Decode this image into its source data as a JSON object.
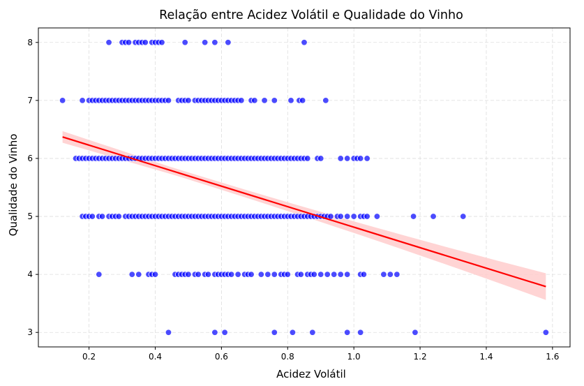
{
  "chart_data": {
    "type": "scatter",
    "title": "Relação entre Acidez Volátil e Qualidade do Vinho",
    "xlabel": "Acidez Volátil",
    "ylabel": "Qualidade do Vinho",
    "xlim": [
      0.047,
      1.653
    ],
    "ylim": [
      2.75,
      8.25
    ],
    "xticks": [
      0.2,
      0.4,
      0.6,
      0.8,
      1.0,
      1.2,
      1.4,
      1.6
    ],
    "xtick_labels": [
      "0.2",
      "0.4",
      "0.6",
      "0.8",
      "1.0",
      "1.2",
      "1.4",
      "1.6"
    ],
    "yticks": [
      3,
      4,
      5,
      6,
      7,
      8
    ],
    "ytick_labels": [
      "3",
      "4",
      "5",
      "6",
      "7",
      "8"
    ],
    "grid": true,
    "colors": {
      "points": "#0000ff",
      "points_edge": "#ffffff",
      "regression_line": "#ff0000",
      "confidence_band": "#ffcccc",
      "grid": "#dddddd"
    },
    "series": [
      {
        "points": [
          [
            0.44,
            3
          ],
          [
            0.58,
            3
          ],
          [
            0.61,
            3
          ],
          [
            0.76,
            3
          ],
          [
            0.815,
            3
          ],
          [
            0.875,
            3
          ],
          [
            0.98,
            3
          ],
          [
            1.02,
            3
          ],
          [
            1.185,
            3
          ],
          [
            1.58,
            3
          ],
          [
            0.23,
            4
          ],
          [
            0.33,
            4
          ],
          [
            0.35,
            4
          ],
          [
            0.38,
            4
          ],
          [
            0.39,
            4
          ],
          [
            0.4,
            4
          ],
          [
            0.46,
            4
          ],
          [
            0.47,
            4
          ],
          [
            0.48,
            4
          ],
          [
            0.49,
            4
          ],
          [
            0.5,
            4
          ],
          [
            0.52,
            4
          ],
          [
            0.53,
            4
          ],
          [
            0.55,
            4
          ],
          [
            0.56,
            4
          ],
          [
            0.58,
            4
          ],
          [
            0.59,
            4
          ],
          [
            0.6,
            4
          ],
          [
            0.61,
            4
          ],
          [
            0.62,
            4
          ],
          [
            0.63,
            4
          ],
          [
            0.65,
            4
          ],
          [
            0.67,
            4
          ],
          [
            0.68,
            4
          ],
          [
            0.69,
            4
          ],
          [
            0.72,
            4
          ],
          [
            0.74,
            4
          ],
          [
            0.76,
            4
          ],
          [
            0.78,
            4
          ],
          [
            0.79,
            4
          ],
          [
            0.8,
            4
          ],
          [
            0.83,
            4
          ],
          [
            0.84,
            4
          ],
          [
            0.86,
            4
          ],
          [
            0.87,
            4
          ],
          [
            0.88,
            4
          ],
          [
            0.9,
            4
          ],
          [
            0.92,
            4
          ],
          [
            0.94,
            4
          ],
          [
            0.96,
            4
          ],
          [
            0.98,
            4
          ],
          [
            1.02,
            4
          ],
          [
            1.03,
            4
          ],
          [
            1.09,
            4
          ],
          [
            1.11,
            4
          ],
          [
            1.13,
            4
          ],
          [
            0.18,
            5
          ],
          [
            0.19,
            5
          ],
          [
            0.2,
            5
          ],
          [
            0.21,
            5
          ],
          [
            0.23,
            5
          ],
          [
            0.24,
            5
          ],
          [
            0.26,
            5
          ],
          [
            0.27,
            5
          ],
          [
            0.28,
            5
          ],
          [
            0.29,
            5
          ],
          [
            0.31,
            5
          ],
          [
            0.32,
            5
          ],
          [
            0.33,
            5
          ],
          [
            0.34,
            5
          ],
          [
            0.35,
            5
          ],
          [
            0.36,
            5
          ],
          [
            0.37,
            5
          ],
          [
            0.38,
            5
          ],
          [
            0.39,
            5
          ],
          [
            0.4,
            5
          ],
          [
            0.41,
            5
          ],
          [
            0.42,
            5
          ],
          [
            0.43,
            5
          ],
          [
            0.44,
            5
          ],
          [
            0.45,
            5
          ],
          [
            0.46,
            5
          ],
          [
            0.47,
            5
          ],
          [
            0.48,
            5
          ],
          [
            0.49,
            5
          ],
          [
            0.5,
            5
          ],
          [
            0.51,
            5
          ],
          [
            0.52,
            5
          ],
          [
            0.53,
            5
          ],
          [
            0.54,
            5
          ],
          [
            0.55,
            5
          ],
          [
            0.56,
            5
          ],
          [
            0.57,
            5
          ],
          [
            0.58,
            5
          ],
          [
            0.59,
            5
          ],
          [
            0.6,
            5
          ],
          [
            0.61,
            5
          ],
          [
            0.62,
            5
          ],
          [
            0.63,
            5
          ],
          [
            0.64,
            5
          ],
          [
            0.65,
            5
          ],
          [
            0.66,
            5
          ],
          [
            0.67,
            5
          ],
          [
            0.68,
            5
          ],
          [
            0.69,
            5
          ],
          [
            0.7,
            5
          ],
          [
            0.71,
            5
          ],
          [
            0.72,
            5
          ],
          [
            0.73,
            5
          ],
          [
            0.74,
            5
          ],
          [
            0.75,
            5
          ],
          [
            0.76,
            5
          ],
          [
            0.77,
            5
          ],
          [
            0.78,
            5
          ],
          [
            0.79,
            5
          ],
          [
            0.8,
            5
          ],
          [
            0.81,
            5
          ],
          [
            0.82,
            5
          ],
          [
            0.83,
            5
          ],
          [
            0.84,
            5
          ],
          [
            0.85,
            5
          ],
          [
            0.86,
            5
          ],
          [
            0.87,
            5
          ],
          [
            0.88,
            5
          ],
          [
            0.89,
            5
          ],
          [
            0.9,
            5
          ],
          [
            0.91,
            5
          ],
          [
            0.92,
            5
          ],
          [
            0.93,
            5
          ],
          [
            0.95,
            5
          ],
          [
            0.96,
            5
          ],
          [
            0.98,
            5
          ],
          [
            1.0,
            5
          ],
          [
            1.02,
            5
          ],
          [
            1.03,
            5
          ],
          [
            1.04,
            5
          ],
          [
            1.07,
            5
          ],
          [
            1.18,
            5
          ],
          [
            1.24,
            5
          ],
          [
            1.33,
            5
          ],
          [
            0.16,
            6
          ],
          [
            0.17,
            6
          ],
          [
            0.18,
            6
          ],
          [
            0.19,
            6
          ],
          [
            0.2,
            6
          ],
          [
            0.21,
            6
          ],
          [
            0.22,
            6
          ],
          [
            0.23,
            6
          ],
          [
            0.24,
            6
          ],
          [
            0.25,
            6
          ],
          [
            0.26,
            6
          ],
          [
            0.27,
            6
          ],
          [
            0.28,
            6
          ],
          [
            0.29,
            6
          ],
          [
            0.3,
            6
          ],
          [
            0.31,
            6
          ],
          [
            0.32,
            6
          ],
          [
            0.33,
            6
          ],
          [
            0.34,
            6
          ],
          [
            0.35,
            6
          ],
          [
            0.36,
            6
          ],
          [
            0.37,
            6
          ],
          [
            0.38,
            6
          ],
          [
            0.39,
            6
          ],
          [
            0.4,
            6
          ],
          [
            0.41,
            6
          ],
          [
            0.42,
            6
          ],
          [
            0.43,
            6
          ],
          [
            0.44,
            6
          ],
          [
            0.45,
            6
          ],
          [
            0.46,
            6
          ],
          [
            0.47,
            6
          ],
          [
            0.48,
            6
          ],
          [
            0.49,
            6
          ],
          [
            0.5,
            6
          ],
          [
            0.51,
            6
          ],
          [
            0.52,
            6
          ],
          [
            0.53,
            6
          ],
          [
            0.54,
            6
          ],
          [
            0.55,
            6
          ],
          [
            0.56,
            6
          ],
          [
            0.57,
            6
          ],
          [
            0.58,
            6
          ],
          [
            0.59,
            6
          ],
          [
            0.6,
            6
          ],
          [
            0.61,
            6
          ],
          [
            0.62,
            6
          ],
          [
            0.63,
            6
          ],
          [
            0.64,
            6
          ],
          [
            0.65,
            6
          ],
          [
            0.66,
            6
          ],
          [
            0.67,
            6
          ],
          [
            0.68,
            6
          ],
          [
            0.69,
            6
          ],
          [
            0.7,
            6
          ],
          [
            0.71,
            6
          ],
          [
            0.72,
            6
          ],
          [
            0.73,
            6
          ],
          [
            0.74,
            6
          ],
          [
            0.75,
            6
          ],
          [
            0.76,
            6
          ],
          [
            0.77,
            6
          ],
          [
            0.78,
            6
          ],
          [
            0.79,
            6
          ],
          [
            0.8,
            6
          ],
          [
            0.81,
            6
          ],
          [
            0.82,
            6
          ],
          [
            0.83,
            6
          ],
          [
            0.84,
            6
          ],
          [
            0.85,
            6
          ],
          [
            0.86,
            6
          ],
          [
            0.89,
            6
          ],
          [
            0.9,
            6
          ],
          [
            0.96,
            6
          ],
          [
            0.98,
            6
          ],
          [
            1.0,
            6
          ],
          [
            1.01,
            6
          ],
          [
            1.02,
            6
          ],
          [
            1.04,
            6
          ],
          [
            0.12,
            7
          ],
          [
            0.18,
            7
          ],
          [
            0.2,
            7
          ],
          [
            0.21,
            7
          ],
          [
            0.22,
            7
          ],
          [
            0.23,
            7
          ],
          [
            0.24,
            7
          ],
          [
            0.25,
            7
          ],
          [
            0.26,
            7
          ],
          [
            0.27,
            7
          ],
          [
            0.28,
            7
          ],
          [
            0.29,
            7
          ],
          [
            0.3,
            7
          ],
          [
            0.31,
            7
          ],
          [
            0.32,
            7
          ],
          [
            0.33,
            7
          ],
          [
            0.34,
            7
          ],
          [
            0.35,
            7
          ],
          [
            0.36,
            7
          ],
          [
            0.37,
            7
          ],
          [
            0.38,
            7
          ],
          [
            0.39,
            7
          ],
          [
            0.4,
            7
          ],
          [
            0.41,
            7
          ],
          [
            0.42,
            7
          ],
          [
            0.43,
            7
          ],
          [
            0.44,
            7
          ],
          [
            0.47,
            7
          ],
          [
            0.48,
            7
          ],
          [
            0.49,
            7
          ],
          [
            0.5,
            7
          ],
          [
            0.52,
            7
          ],
          [
            0.53,
            7
          ],
          [
            0.54,
            7
          ],
          [
            0.55,
            7
          ],
          [
            0.56,
            7
          ],
          [
            0.57,
            7
          ],
          [
            0.58,
            7
          ],
          [
            0.59,
            7
          ],
          [
            0.6,
            7
          ],
          [
            0.61,
            7
          ],
          [
            0.62,
            7
          ],
          [
            0.63,
            7
          ],
          [
            0.64,
            7
          ],
          [
            0.65,
            7
          ],
          [
            0.66,
            7
          ],
          [
            0.69,
            7
          ],
          [
            0.7,
            7
          ],
          [
            0.73,
            7
          ],
          [
            0.76,
            7
          ],
          [
            0.81,
            7
          ],
          [
            0.835,
            7
          ],
          [
            0.845,
            7
          ],
          [
            0.915,
            7
          ],
          [
            0.26,
            8
          ],
          [
            0.3,
            8
          ],
          [
            0.31,
            8
          ],
          [
            0.32,
            8
          ],
          [
            0.34,
            8
          ],
          [
            0.35,
            8
          ],
          [
            0.36,
            8
          ],
          [
            0.37,
            8
          ],
          [
            0.39,
            8
          ],
          [
            0.4,
            8
          ],
          [
            0.41,
            8
          ],
          [
            0.42,
            8
          ],
          [
            0.49,
            8
          ],
          [
            0.55,
            8
          ],
          [
            0.58,
            8
          ],
          [
            0.62,
            8
          ],
          [
            0.85,
            8
          ]
        ]
      }
    ],
    "regression": {
      "x": [
        0.12,
        1.58
      ],
      "y": [
        6.37,
        3.79
      ],
      "ci_half_width": [
        0.07,
        0.23
      ]
    }
  }
}
